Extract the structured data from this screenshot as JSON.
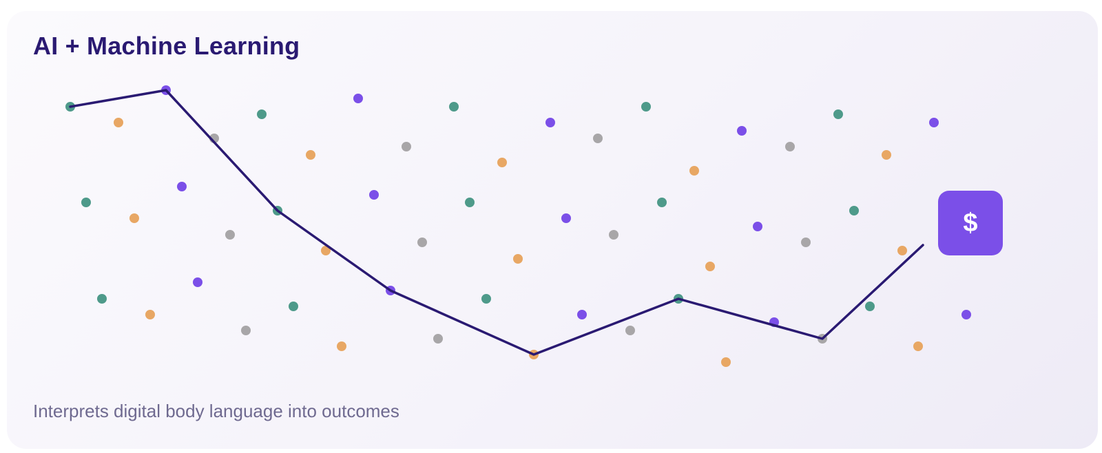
{
  "card": {
    "title": "AI + Machine Learning",
    "subtitle": "Interprets digital body language into outcomes",
    "badge": {
      "label": "$",
      "icon": "dollar-icon",
      "color": "#7b4fe8"
    }
  },
  "colors": {
    "line": "#2a1a72",
    "green": "#4e9a8a",
    "orange": "#e8a764",
    "gray": "#a8a6a8",
    "purple": "#7b4fe8"
  }
}
